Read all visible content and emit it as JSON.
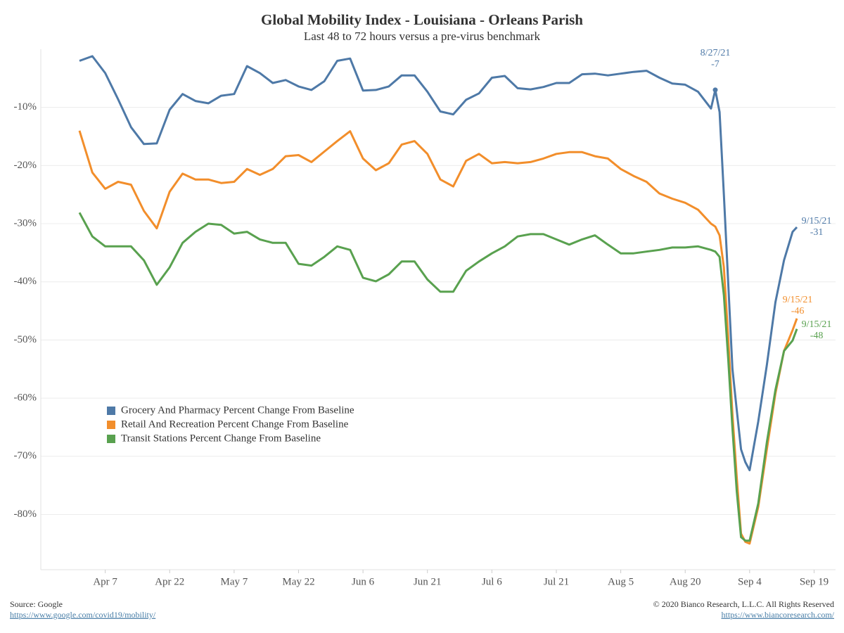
{
  "chart_data": {
    "type": "line",
    "title": "Global Mobility Index - Louisiana - Orleans Parish",
    "subtitle": "Last 48 to 72 hours versus a pre-virus benchmark",
    "x": [
      "2021-04-01",
      "2021-04-04",
      "2021-04-07",
      "2021-04-10",
      "2021-04-13",
      "2021-04-16",
      "2021-04-19",
      "2021-04-22",
      "2021-04-25",
      "2021-04-28",
      "2021-05-01",
      "2021-05-04",
      "2021-05-07",
      "2021-05-10",
      "2021-05-13",
      "2021-05-16",
      "2021-05-19",
      "2021-05-22",
      "2021-05-25",
      "2021-05-28",
      "2021-05-31",
      "2021-06-03",
      "2021-06-06",
      "2021-06-09",
      "2021-06-12",
      "2021-06-15",
      "2021-06-18",
      "2021-06-21",
      "2021-06-24",
      "2021-06-27",
      "2021-06-30",
      "2021-07-03",
      "2021-07-06",
      "2021-07-09",
      "2021-07-12",
      "2021-07-15",
      "2021-07-18",
      "2021-07-21",
      "2021-07-24",
      "2021-07-27",
      "2021-07-30",
      "2021-08-02",
      "2021-08-05",
      "2021-08-08",
      "2021-08-11",
      "2021-08-14",
      "2021-08-17",
      "2021-08-20",
      "2021-08-23",
      "2021-08-26",
      "2021-08-27",
      "2021-08-28",
      "2021-08-29",
      "2021-08-30",
      "2021-08-31",
      "2021-09-01",
      "2021-09-02",
      "2021-09-03",
      "2021-09-04",
      "2021-09-06",
      "2021-09-08",
      "2021-09-10",
      "2021-09-12",
      "2021-09-14",
      "2021-09-15"
    ],
    "series": [
      {
        "name": "Grocery And Pharmacy Percent Change From Baseline",
        "color": "#4e79a7",
        "values": [
          -2.0,
          -1.2,
          -4.1,
          -8.6,
          -13.4,
          -16.3,
          -16.2,
          -10.4,
          -7.7,
          -8.9,
          -9.3,
          -8.0,
          -7.7,
          -2.9,
          -4.1,
          -5.8,
          -5.3,
          -6.4,
          -7.0,
          -5.5,
          -2.0,
          -1.6,
          -7.1,
          -7.0,
          -6.4,
          -4.5,
          -4.5,
          -7.3,
          -10.7,
          -11.2,
          -8.7,
          -7.6,
          -4.9,
          -4.6,
          -6.7,
          -6.9,
          -6.5,
          -5.8,
          -5.8,
          -4.3,
          -4.2,
          -4.5,
          -4.2,
          -3.9,
          -3.7,
          -4.9,
          -5.9,
          -6.1,
          -7.3,
          -10.2,
          -7,
          -10.8,
          -25,
          -40,
          -55,
          -62,
          -68.8,
          -71,
          -72.4,
          -64,
          -54.3,
          -43.5,
          -36.3,
          -31.4,
          -30.6
        ],
        "annotations": [
          {
            "x": "2021-08-27",
            "label": "8/27/21",
            "value": -7
          },
          {
            "x": "2021-09-15",
            "label": "9/15/21",
            "value": -31
          }
        ]
      },
      {
        "name": "Retail And Recreation Percent Change From Baseline",
        "color": "#f28e2b",
        "values": [
          -14.0,
          -21.2,
          -24.0,
          -22.8,
          -23.3,
          -27.8,
          -30.8,
          -24.5,
          -21.4,
          -22.4,
          -22.4,
          -23.0,
          -22.8,
          -20.6,
          -21.6,
          -20.6,
          -18.4,
          -18.2,
          -19.4,
          -17.6,
          -15.8,
          -14.1,
          -18.8,
          -20.8,
          -19.6,
          -16.4,
          -15.8,
          -18.0,
          -22.4,
          -23.6,
          -19.2,
          -18.0,
          -19.6,
          -19.4,
          -19.6,
          -19.4,
          -18.8,
          -18.0,
          -17.7,
          -17.7,
          -18.4,
          -18.8,
          -20.6,
          -21.8,
          -22.8,
          -24.8,
          -25.7,
          -26.4,
          -27.6,
          -30.0,
          -30.5,
          -32,
          -37.5,
          -49.5,
          -62.8,
          -73.6,
          -83.3,
          -84.7,
          -85,
          -78.7,
          -68.8,
          -59.2,
          -51.9,
          -48.3,
          -46.3
        ],
        "annotations": [
          {
            "x": "2021-09-15",
            "label": "9/15/21",
            "value": -46
          }
        ]
      },
      {
        "name": "Transit Stations Percent Change From Baseline",
        "color": "#59a14f",
        "values": [
          -28.1,
          -32.2,
          -33.9,
          -33.9,
          -33.9,
          -36.3,
          -40.5,
          -37.5,
          -33.3,
          -31.4,
          -30.0,
          -30.2,
          -31.7,
          -31.4,
          -32.7,
          -33.3,
          -33.3,
          -36.9,
          -37.2,
          -35.7,
          -33.9,
          -34.5,
          -39.3,
          -39.9,
          -38.7,
          -36.5,
          -36.5,
          -39.6,
          -41.7,
          -41.7,
          -38.1,
          -36.5,
          -35.1,
          -33.9,
          -32.2,
          -31.8,
          -31.8,
          -32.7,
          -33.6,
          -32.7,
          -32.0,
          -33.6,
          -35.1,
          -35.1,
          -34.8,
          -34.5,
          -34.1,
          -34.1,
          -33.9,
          -34.5,
          -34.8,
          -35.7,
          -42.3,
          -53.1,
          -65.2,
          -76.0,
          -83.9,
          -84.5,
          -84.5,
          -78.1,
          -67.6,
          -58.6,
          -51.9,
          -50.1,
          -48.1
        ],
        "annotations": [
          {
            "x": "2021-09-15",
            "label": "9/15/21",
            "value": -48
          }
        ]
      }
    ],
    "xlim": [
      "2021-03-23",
      "2021-09-24"
    ],
    "xticks": [
      {
        "value": "2021-04-07",
        "label": "Apr 7"
      },
      {
        "value": "2021-04-22",
        "label": "Apr 22"
      },
      {
        "value": "2021-05-07",
        "label": "May 7"
      },
      {
        "value": "2021-05-22",
        "label": "May 22"
      },
      {
        "value": "2021-06-06",
        "label": "Jun 6"
      },
      {
        "value": "2021-06-21",
        "label": "Jun 21"
      },
      {
        "value": "2021-07-06",
        "label": "Jul 6"
      },
      {
        "value": "2021-07-21",
        "label": "Jul 21"
      },
      {
        "value": "2021-08-05",
        "label": "Aug 5"
      },
      {
        "value": "2021-08-20",
        "label": "Aug 20"
      },
      {
        "value": "2021-09-04",
        "label": "Sep 4"
      },
      {
        "value": "2021-09-19",
        "label": "Sep 19"
      }
    ],
    "ylim": [
      -89.5,
      0
    ],
    "yticks": [
      {
        "value": -10,
        "label": "-10%"
      },
      {
        "value": -20,
        "label": "-20%"
      },
      {
        "value": -30,
        "label": "-30%"
      },
      {
        "value": -40,
        "label": "-40%"
      },
      {
        "value": -50,
        "label": "-50%"
      },
      {
        "value": -60,
        "label": "-60%"
      },
      {
        "value": -70,
        "label": "-70%"
      },
      {
        "value": -80,
        "label": "-80%"
      }
    ],
    "grid": true,
    "legend": "left",
    "source": "Source: Google",
    "source_url": "https://www.google.com/covid19/mobility/",
    "copyright": "© 2020 Bianco Research, L.L.C. All Rights Reserved",
    "copyright_url": "https://www.biancoresearch.com/"
  }
}
